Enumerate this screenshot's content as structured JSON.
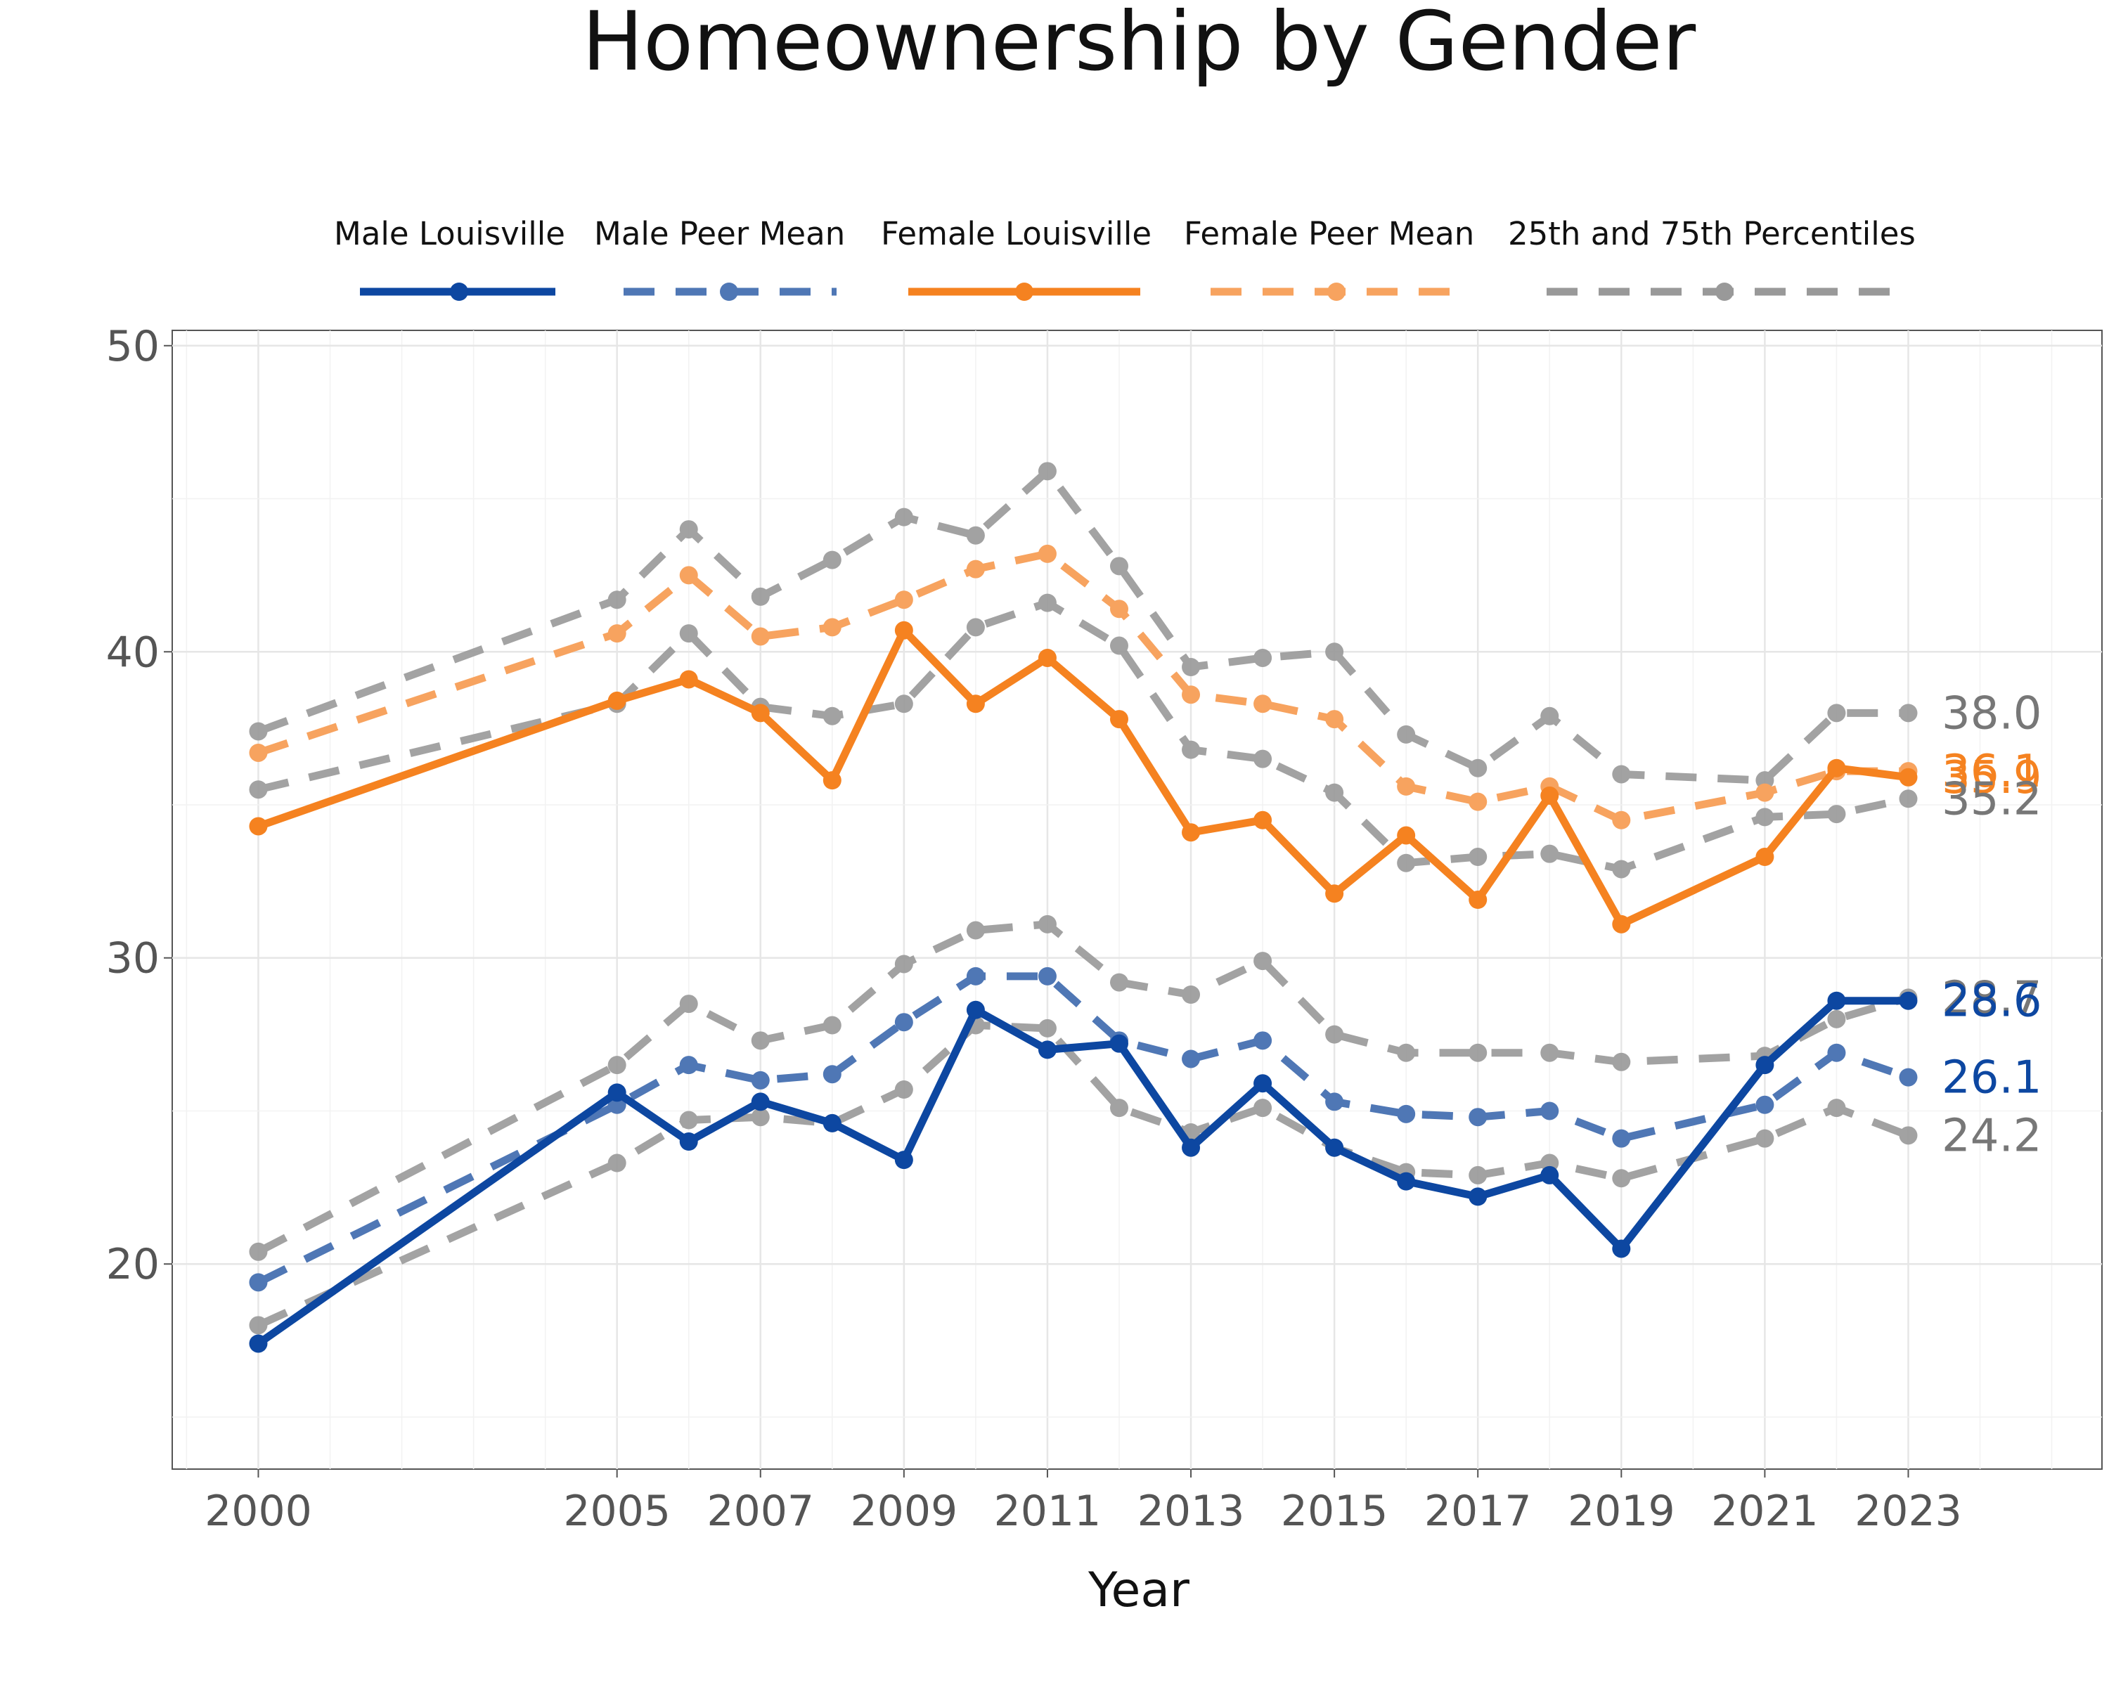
{
  "chart_data": {
    "type": "line",
    "title": "Homeownership by Gender",
    "xlabel": "Year",
    "ylabel": "",
    "x_ticks": [
      2000,
      2005,
      2007,
      2009,
      2011,
      2013,
      2015,
      2017,
      2019,
      2021,
      2023
    ],
    "y_ticks": [
      20,
      30,
      40,
      50
    ],
    "xlim": [
      1998.8,
      2025.7
    ],
    "ylim": [
      13.3,
      50.5
    ],
    "grid": true,
    "legend_position": "top",
    "x": [
      2000,
      2005,
      2006,
      2007,
      2008,
      2009,
      2010,
      2011,
      2012,
      2013,
      2014,
      2015,
      2016,
      2017,
      2018,
      2019,
      2021,
      2022,
      2023
    ],
    "legend": [
      {
        "key": "male_louisville",
        "label": "Male Louisville",
        "color": "#0D47A1",
        "dash": "solid"
      },
      {
        "key": "male_peer",
        "label": "Male Peer Mean",
        "color": "#4F77B5",
        "dash": "dashed"
      },
      {
        "key": "female_louisville",
        "label": "Female Louisville",
        "color": "#F58220",
        "dash": "solid"
      },
      {
        "key": "female_peer",
        "label": "Female Peer Mean",
        "color": "#F7A35F",
        "dash": "dashed"
      },
      {
        "key": "percentiles",
        "label": "25th and 75th Percentiles",
        "color": "#999999",
        "dash": "dashed"
      }
    ],
    "series": [
      {
        "key": "female_p75",
        "group": "percentiles",
        "color": "#999999",
        "dashed": true,
        "opacity": 0.9,
        "values": [
          37.4,
          41.7,
          44.0,
          41.8,
          43.0,
          44.4,
          43.8,
          45.9,
          42.8,
          39.5,
          39.8,
          40.0,
          37.3,
          36.2,
          37.9,
          36.0,
          35.8,
          38.0,
          38.0
        ]
      },
      {
        "key": "female_p25",
        "group": "percentiles",
        "color": "#999999",
        "dashed": true,
        "opacity": 0.9,
        "values": [
          35.5,
          38.3,
          40.6,
          38.2,
          37.9,
          38.3,
          40.8,
          41.6,
          40.2,
          36.8,
          36.5,
          35.4,
          33.1,
          33.3,
          33.4,
          32.9,
          34.6,
          34.7,
          35.2
        ]
      },
      {
        "key": "male_p75",
        "group": "percentiles",
        "color": "#999999",
        "dashed": true,
        "opacity": 0.9,
        "values": [
          20.4,
          26.5,
          28.5,
          27.3,
          27.8,
          29.8,
          30.9,
          31.1,
          29.2,
          28.8,
          29.9,
          27.5,
          26.9,
          26.9,
          26.9,
          26.6,
          26.8,
          28.0,
          28.7
        ]
      },
      {
        "key": "male_p25",
        "group": "percentiles",
        "color": "#999999",
        "dashed": true,
        "opacity": 0.9,
        "values": [
          18.0,
          23.3,
          24.7,
          24.8,
          24.6,
          25.7,
          27.8,
          27.7,
          25.1,
          24.3,
          25.1,
          23.8,
          23.0,
          22.9,
          23.3,
          22.8,
          24.1,
          25.1,
          24.2
        ]
      },
      {
        "key": "female_peer",
        "group": "female_peer",
        "name": "Female Peer Mean",
        "color": "#F7A35F",
        "dashed": true,
        "opacity": 1,
        "values": [
          36.7,
          40.6,
          42.5,
          40.5,
          40.8,
          41.7,
          42.7,
          43.2,
          41.4,
          38.6,
          38.3,
          37.8,
          35.6,
          35.1,
          35.6,
          34.5,
          35.4,
          36.1,
          36.1
        ]
      },
      {
        "key": "male_peer",
        "group": "male_peer",
        "name": "Male Peer Mean",
        "color": "#4F77B5",
        "dashed": true,
        "opacity": 1,
        "values": [
          19.4,
          25.2,
          26.5,
          26.0,
          26.2,
          27.9,
          29.4,
          29.4,
          27.3,
          26.7,
          27.3,
          25.3,
          24.9,
          24.8,
          25.0,
          24.1,
          25.2,
          26.9,
          26.1
        ]
      },
      {
        "key": "female_louisville",
        "group": "female_louisville",
        "name": "Female Louisville",
        "color": "#F58220",
        "dashed": false,
        "opacity": 1,
        "values": [
          34.3,
          38.4,
          39.1,
          38.0,
          35.8,
          40.7,
          38.3,
          39.8,
          37.8,
          34.1,
          34.5,
          32.1,
          34.0,
          31.9,
          35.3,
          31.1,
          33.3,
          36.2,
          35.9
        ]
      },
      {
        "key": "male_louisville",
        "group": "male_louisville",
        "name": "Male Louisville",
        "color": "#0D47A1",
        "dashed": false,
        "opacity": 1,
        "values": [
          17.4,
          25.6,
          24.0,
          25.3,
          24.6,
          23.4,
          28.3,
          27.0,
          27.2,
          23.8,
          25.9,
          23.8,
          22.7,
          22.2,
          22.9,
          20.5,
          26.5,
          28.6,
          28.6
        ]
      }
    ],
    "end_labels": [
      {
        "text": "38.0",
        "value": 38.0,
        "color": "#777777"
      },
      {
        "text": "36.1",
        "value": 36.1,
        "color": "#F58220"
      },
      {
        "text": "35.9",
        "value": 35.9,
        "color": "#F58220"
      },
      {
        "text": "35.2",
        "value": 35.2,
        "color": "#777777"
      },
      {
        "text": "28.7",
        "value": 28.7,
        "color": "#777777"
      },
      {
        "text": "28.6",
        "value": 28.6,
        "color": "#0D47A1"
      },
      {
        "text": "26.1",
        "value": 26.1,
        "color": "#0D47A1"
      },
      {
        "text": "24.2",
        "value": 24.2,
        "color": "#777777"
      }
    ]
  }
}
